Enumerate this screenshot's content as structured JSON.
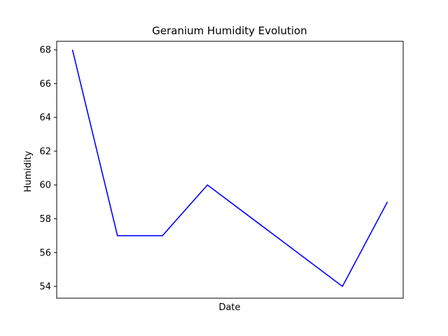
{
  "chart_data": {
    "type": "line",
    "title": "Geranium Humidity Evolution",
    "xlabel": "Date",
    "ylabel": "Humidity",
    "ylim": [
      53.3,
      68.5
    ],
    "yticks": [
      54,
      56,
      58,
      60,
      62,
      64,
      66,
      68
    ],
    "x_tick_labels_shown": false,
    "grid": false,
    "series": [
      {
        "color": "#0000ff",
        "points": [
          {
            "x": 0,
            "y": 68
          },
          {
            "x": 1,
            "y": 57
          },
          {
            "x": 2,
            "y": 57
          },
          {
            "x": 3,
            "y": 60
          },
          {
            "x": 6,
            "y": 54
          },
          {
            "x": 7,
            "y": 59
          }
        ]
      }
    ]
  }
}
